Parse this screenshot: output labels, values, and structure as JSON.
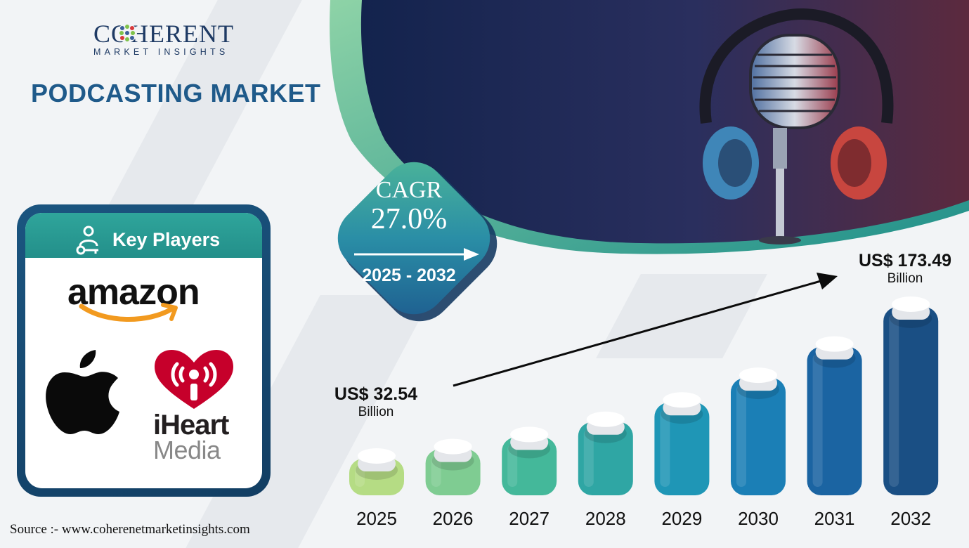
{
  "brand": {
    "name": "COHERENT",
    "subtitle": "MARKET INSIGHTS"
  },
  "title": "PODCASTING MARKET",
  "key_players": {
    "title": "Key Players",
    "companies": [
      "amazon",
      "iHeart",
      "Media"
    ]
  },
  "cagr": {
    "label": "CAGR",
    "value": "27.0%",
    "period": "2025 - 2032"
  },
  "chart_data": {
    "type": "bar",
    "categories": [
      "2025",
      "2026",
      "2027",
      "2028",
      "2029",
      "2030",
      "2031",
      "2032"
    ],
    "values": [
      32.54,
      41.3,
      52.5,
      66.6,
      84.6,
      107.5,
      136.5,
      173.49
    ],
    "start_label": {
      "amount": "US$ 32.54",
      "unit": "Billion"
    },
    "end_label": {
      "amount": "US$ 173.49",
      "unit": "Billion"
    },
    "colors": [
      "#b5dc84",
      "#7fcc92",
      "#44b89a",
      "#2fa6a4",
      "#1f96b6",
      "#1b7fb6",
      "#1b64a2",
      "#1a4f84"
    ]
  },
  "source": "Source :- www.coherenetmarketinsights.com"
}
